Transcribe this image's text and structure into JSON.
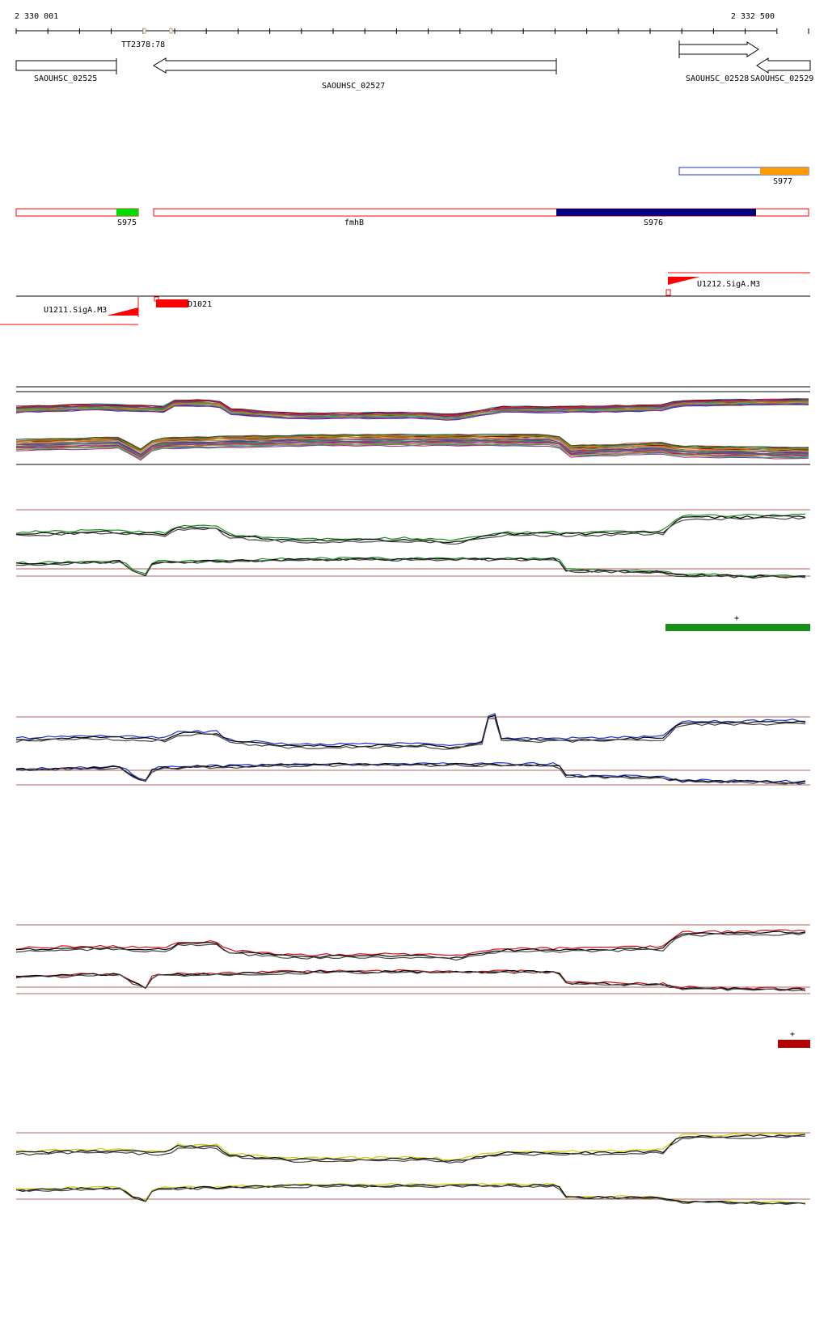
{
  "ruler": {
    "start_label": "2 330 001",
    "end_label": "2 332 500",
    "start_bp": 2330001,
    "end_bp": 2332500
  },
  "terminator": {
    "label": "TT2378:78"
  },
  "genes": [
    {
      "id": "SAOUHSC_02525",
      "label": "SAOUHSC_02525",
      "strand": "+"
    },
    {
      "id": "SAOUHSC_02527",
      "label": "SAOUHSC_02527",
      "strand": "-"
    },
    {
      "id": "SAOUHSC_02528",
      "label": "SAOUHSC_02528",
      "strand": "+"
    },
    {
      "id": "SAOUHSC_02529",
      "label": "SAOUHSC_02529",
      "strand": "-"
    }
  ],
  "segments": [
    {
      "label": "S975",
      "color": "#00dd00"
    },
    {
      "label": "fmhB",
      "color": "#ff0000"
    },
    {
      "label": "S976",
      "color": "#00007f"
    },
    {
      "label": "S977",
      "color": "#ff9900"
    }
  ],
  "promoters": [
    {
      "label": "U1211.SigA.M3",
      "color": "#ff0000"
    },
    {
      "label": "U1212.SigA.M3",
      "color": "#ff0000"
    },
    {
      "label": "D1021",
      "color": "#ff0000"
    }
  ],
  "condition_tracks": [
    {
      "name": "green",
      "color": "#1a8f1a",
      "marker": "+",
      "bar_color": "#1a8f1a"
    },
    {
      "name": "blue",
      "color": "#1a33cc"
    },
    {
      "name": "red",
      "color": "#cc1111",
      "marker": "+",
      "bar_color": "#b30000"
    },
    {
      "name": "yellow",
      "color": "#cccc00"
    }
  ]
}
